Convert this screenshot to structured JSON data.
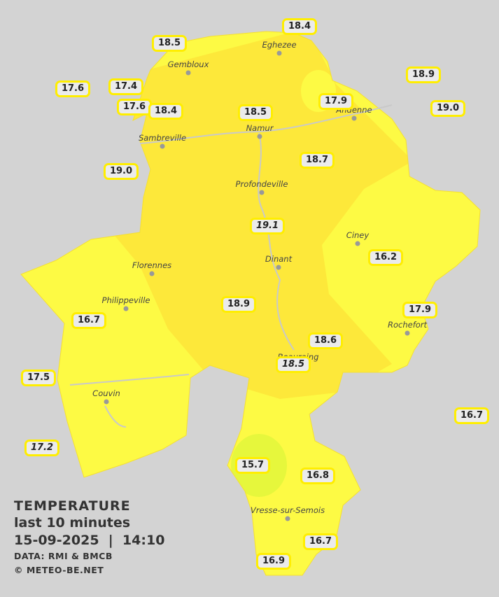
{
  "legend": {
    "title": "TEMPERATURE",
    "subtitle": "last 10 minutes",
    "datetime": "15-09-2025  |  14:10",
    "source": "DATA: RMI & BMCB",
    "copyright": "© METEO-BE.NET"
  },
  "colors": {
    "background": "#d3d3d3",
    "zone_warm": "#fde83a",
    "zone_mid": "#fff03c",
    "zone_cool": "#fdfa44",
    "zone_coolest": "#e6f73c",
    "label_border": "#ffee00"
  },
  "cities": [
    {
      "name": "Eghezee"
    },
    {
      "name": "Gembloux"
    },
    {
      "name": "Andenne"
    },
    {
      "name": "Namur"
    },
    {
      "name": "Sambreville"
    },
    {
      "name": "Profondeville"
    },
    {
      "name": "Ciney"
    },
    {
      "name": "Dinant"
    },
    {
      "name": "Florennes"
    },
    {
      "name": "Philippeville"
    },
    {
      "name": "Rochefort"
    },
    {
      "name": "Beauraing"
    },
    {
      "name": "Couvin"
    },
    {
      "name": "Vresse-sur-Semois"
    }
  ],
  "stations": [
    {
      "value": "18.4",
      "italic": false
    },
    {
      "value": "18.5",
      "italic": false
    },
    {
      "value": "18.9",
      "italic": false
    },
    {
      "value": "17.6",
      "italic": false
    },
    {
      "value": "17.4",
      "italic": false
    },
    {
      "value": "17.6",
      "italic": false
    },
    {
      "value": "18.4",
      "italic": false
    },
    {
      "value": "18.5",
      "italic": false
    },
    {
      "value": "17.9",
      "italic": false
    },
    {
      "value": "19.0",
      "italic": false
    },
    {
      "value": "19.0",
      "italic": false
    },
    {
      "value": "18.7",
      "italic": false
    },
    {
      "value": "19.1",
      "italic": true
    },
    {
      "value": "16.2",
      "italic": false
    },
    {
      "value": "18.9",
      "italic": false
    },
    {
      "value": "16.7",
      "italic": false
    },
    {
      "value": "17.9",
      "italic": false
    },
    {
      "value": "18.6",
      "italic": false
    },
    {
      "value": "18.5",
      "italic": true
    },
    {
      "value": "17.5",
      "italic": false
    },
    {
      "value": "16.7",
      "italic": false
    },
    {
      "value": "17.2",
      "italic": true
    },
    {
      "value": "15.7",
      "italic": false
    },
    {
      "value": "16.8",
      "italic": false
    },
    {
      "value": "16.7",
      "italic": false
    },
    {
      "value": "16.9",
      "italic": false
    }
  ]
}
